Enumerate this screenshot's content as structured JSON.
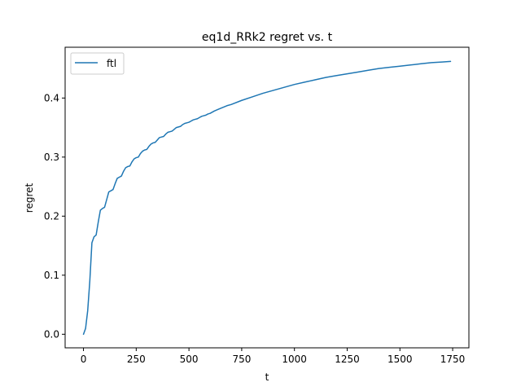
{
  "chart_data": {
    "type": "line",
    "title": "eq1d_RRk2 regret vs. t",
    "xlabel": "t",
    "ylabel": "regret",
    "xlim": [
      -87,
      1827
    ],
    "ylim": [
      -0.023,
      0.486
    ],
    "xticks": [
      0,
      250,
      500,
      750,
      1000,
      1250,
      1500,
      1750
    ],
    "yticks": [
      0.0,
      0.1,
      0.2,
      0.3,
      0.4
    ],
    "xtick_labels": [
      "0",
      "250",
      "500",
      "750",
      "1000",
      "1250",
      "1500",
      "1750"
    ],
    "ytick_labels": [
      "0.0",
      "0.1",
      "0.2",
      "0.3",
      "0.4"
    ],
    "legend": {
      "position": "upper-left",
      "entries": [
        "ftl"
      ]
    },
    "grid": false,
    "series": [
      {
        "name": "ftl",
        "color": "#1f77b4",
        "x": [
          0,
          10,
          20,
          30,
          40,
          50,
          60,
          70,
          80,
          90,
          100,
          110,
          120,
          130,
          140,
          150,
          160,
          170,
          180,
          190,
          200,
          210,
          220,
          230,
          240,
          250,
          260,
          270,
          280,
          290,
          300,
          310,
          320,
          330,
          340,
          350,
          360,
          370,
          380,
          390,
          400,
          410,
          420,
          430,
          440,
          450,
          460,
          470,
          480,
          490,
          500,
          510,
          520,
          530,
          540,
          550,
          560,
          570,
          580,
          590,
          600,
          620,
          640,
          660,
          680,
          700,
          750,
          800,
          850,
          900,
          950,
          1000,
          1050,
          1100,
          1150,
          1200,
          1250,
          1300,
          1350,
          1400,
          1450,
          1500,
          1550,
          1600,
          1650,
          1700,
          1740
        ],
        "y": [
          0.0,
          0.01,
          0.04,
          0.09,
          0.155,
          0.165,
          0.168,
          0.19,
          0.21,
          0.213,
          0.215,
          0.228,
          0.241,
          0.243,
          0.245,
          0.255,
          0.264,
          0.266,
          0.268,
          0.276,
          0.282,
          0.284,
          0.285,
          0.292,
          0.297,
          0.299,
          0.3,
          0.306,
          0.31,
          0.312,
          0.313,
          0.318,
          0.322,
          0.324,
          0.325,
          0.329,
          0.333,
          0.334,
          0.335,
          0.339,
          0.342,
          0.343,
          0.344,
          0.347,
          0.35,
          0.351,
          0.352,
          0.355,
          0.357,
          0.358,
          0.359,
          0.361,
          0.363,
          0.364,
          0.365,
          0.367,
          0.369,
          0.37,
          0.371,
          0.373,
          0.374,
          0.378,
          0.381,
          0.384,
          0.387,
          0.389,
          0.396,
          0.402,
          0.408,
          0.413,
          0.418,
          0.423,
          0.427,
          0.431,
          0.435,
          0.438,
          0.441,
          0.444,
          0.447,
          0.45,
          0.452,
          0.454,
          0.456,
          0.458,
          0.46,
          0.461,
          0.462
        ]
      }
    ]
  }
}
